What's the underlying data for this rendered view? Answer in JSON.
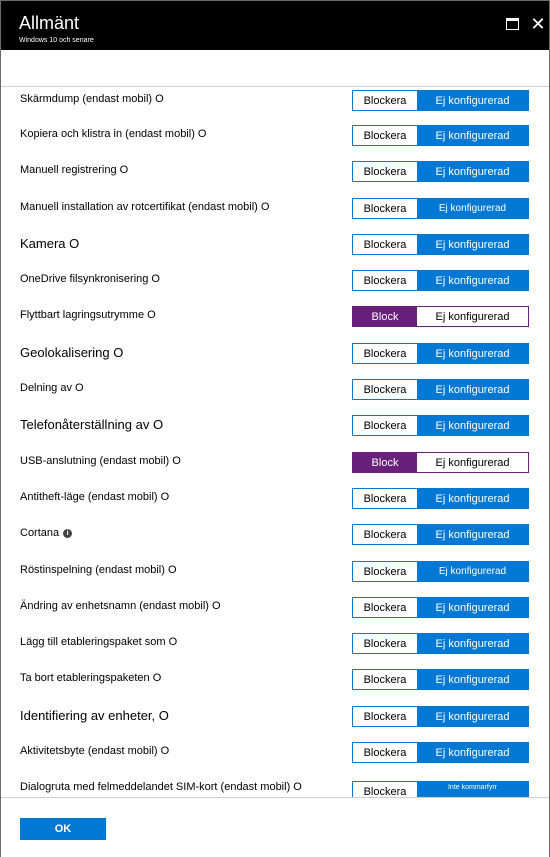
{
  "window": {
    "title": "Allmänt",
    "subtitle": "Windows 10 och senare",
    "maximize_icon": "maximize-icon",
    "close_icon": "close-icon",
    "close_glyph": "✕"
  },
  "settings": [
    {
      "label": "Skärmdump (endast mobil) O",
      "left": "Blockera",
      "right": "Ej konfigurerad",
      "style": "blue"
    },
    {
      "label": "Kopiera och klistra in (endast mobil) O",
      "left": "Blockera",
      "right": "Ej konfigurerad",
      "style": "blue"
    },
    {
      "label": "Manuell registrering O",
      "left": "Blockera",
      "right": "Ej konfigurerad",
      "style": "blue"
    },
    {
      "label": "Manuell installation av rotcertifikat (endast mobil) O",
      "left": "Blockera",
      "right": "Ej konfigurerad",
      "style": "blue"
    },
    {
      "label": "Kamera O",
      "left": "Blockera",
      "right": "Ej konfigurerad",
      "style": "blue"
    },
    {
      "label": "OneDrive filsynkronisering O",
      "left": "Blockera",
      "right": "Ej konfigurerad",
      "style": "blue"
    },
    {
      "label": "Flyttbart lagringsutrymme O",
      "left": "Block",
      "right": "Ej konfigurerad",
      "style": "purple"
    },
    {
      "label": "Geolokalisering O",
      "left": "Blockera",
      "right": "Ej konfigurerad",
      "style": "blue"
    },
    {
      "label": "Delning av O",
      "left": "Blockera",
      "right": "Ej konfigurerad",
      "style": "blue"
    },
    {
      "label": "Telefonåterställning av O",
      "left": "Blockera",
      "right": "Ej konfigurerad",
      "style": "blue"
    },
    {
      "label": "USB-anslutning (endast mobil) O",
      "left": "Block",
      "right": "Ej konfigurerad",
      "style": "purple"
    },
    {
      "label": "Antitheft-läge (endast mobil) O",
      "left": "Blockera",
      "right": "Ej konfigurerad",
      "style": "blue"
    },
    {
      "label": "Cortana",
      "left": "Blockera",
      "right": "Ej konfigurerad",
      "style": "blue",
      "icon": "info-icon"
    },
    {
      "label": "Röstinspelning (endast mobil) O",
      "left": "Blockera",
      "right": "Ej konfigurerad",
      "style": "blue"
    },
    {
      "label": "Ändring av enhetsnamn (endast mobil) O",
      "left": "Blockera",
      "right": "Ej konfigurerad",
      "style": "blue"
    },
    {
      "label": "Lägg till etableringspaket som O",
      "left": "Blockera",
      "right": "Ej konfigurerad",
      "style": "blue"
    },
    {
      "label": "Ta bort etableringspaketen O",
      "left": "Blockera",
      "right": "Ej konfigurerad",
      "style": "blue"
    },
    {
      "label": "Identifiering av enheter, O",
      "left": "Blockera",
      "right": "Ej konfigurerad",
      "style": "blue"
    },
    {
      "label": "Aktivitetsbyte (endast mobil) O",
      "left": "Blockera",
      "right": "Ej konfigurerad",
      "style": "blue"
    },
    {
      "label": "Dialogruta med felmeddelandet SIM-kort (endast mobil) O",
      "left": "Blockera",
      "right": "Inte kommarfyrr",
      "style": "blue"
    }
  ],
  "footer": {
    "ok_label": "OK"
  },
  "colors": {
    "accent": "#0078d4",
    "block_selected": "#68217a",
    "titlebar": "#000000"
  }
}
